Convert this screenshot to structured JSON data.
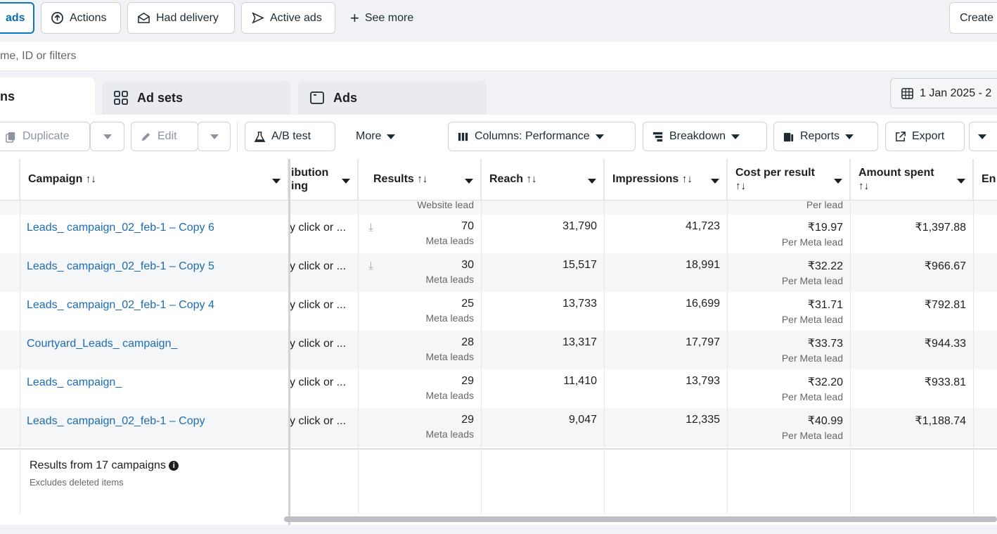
{
  "filters": {
    "ads_chip": "ads",
    "actions": "Actions",
    "had_delivery": "Had delivery",
    "active_ads": "Active ads",
    "see_more": "See more",
    "create": "Create"
  },
  "search": {
    "placeholder": "me, ID or filters"
  },
  "tabs": {
    "campaigns": "ns",
    "adsets": "Ad sets",
    "ads": "Ads"
  },
  "date_range": "1 Jan 2025 - 2",
  "toolbar": {
    "duplicate": "Duplicate",
    "edit": "Edit",
    "ab_test": "A/B test",
    "more": "More",
    "columns": "Columns: Performance",
    "breakdown": "Breakdown",
    "reports": "Reports",
    "export": "Export"
  },
  "columns": {
    "campaign": "Campaign",
    "attribution_1": "ibution",
    "attribution_2": "ing",
    "results": "Results",
    "reach": "Reach",
    "impressions": "Impressions",
    "cost_per_result": "Cost per result",
    "amount_spent": "Amount spent",
    "ends": "En",
    "sort_arrows": "↑↓"
  },
  "partial_row": {
    "results_sub": "Website lead",
    "cost_sub": "Per lead"
  },
  "rows": [
    {
      "name": "Leads_ campaign_02_feb-1 – Copy 6",
      "attribution": "y click or ...",
      "results": "70",
      "results_sub": "Meta leads",
      "reach": "31,790",
      "impressions": "41,723",
      "cost": "₹19.97",
      "cost_sub": "Per Meta lead",
      "spent": "₹1,397.88"
    },
    {
      "name": "Leads_ campaign_02_feb-1 – Copy 5",
      "attribution": "y click or ...",
      "results": "30",
      "results_sub": "Meta leads",
      "reach": "15,517",
      "impressions": "18,991",
      "cost": "₹32.22",
      "cost_sub": "Per Meta lead",
      "spent": "₹966.67"
    },
    {
      "name": "Leads_ campaign_02_feb-1 – Copy 4",
      "attribution": "y click or ...",
      "results": "25",
      "results_sub": "Meta leads",
      "reach": "13,733",
      "impressions": "16,699",
      "cost": "₹31.71",
      "cost_sub": "Per Meta lead",
      "spent": "₹792.81"
    },
    {
      "name": "Courtyard_Leads_ campaign_",
      "attribution": "y click or ...",
      "results": "28",
      "results_sub": "Meta leads",
      "reach": "13,317",
      "impressions": "17,797",
      "cost": "₹33.73",
      "cost_sub": "Per Meta lead",
      "spent": "₹944.33"
    },
    {
      "name": "Leads_ campaign_",
      "attribution": "y click or ...",
      "results": "29",
      "results_sub": "Meta leads",
      "reach": "11,410",
      "impressions": "13,793",
      "cost": "₹32.20",
      "cost_sub": "Per Meta lead",
      "spent": "₹933.81"
    },
    {
      "name": "Leads_ campaign_02_feb-1 – Copy",
      "attribution": "y click or ...",
      "results": "29",
      "results_sub": "Meta leads",
      "reach": "9,047",
      "impressions": "12,335",
      "cost": "₹40.99",
      "cost_sub": "Per Meta lead",
      "spent": "₹1,188.74"
    }
  ],
  "footer": {
    "summary": "Results from 17 campaigns",
    "note": "Excludes deleted items"
  },
  "colors": {
    "link": "#1b6cb5",
    "accent": "#0a78be"
  }
}
